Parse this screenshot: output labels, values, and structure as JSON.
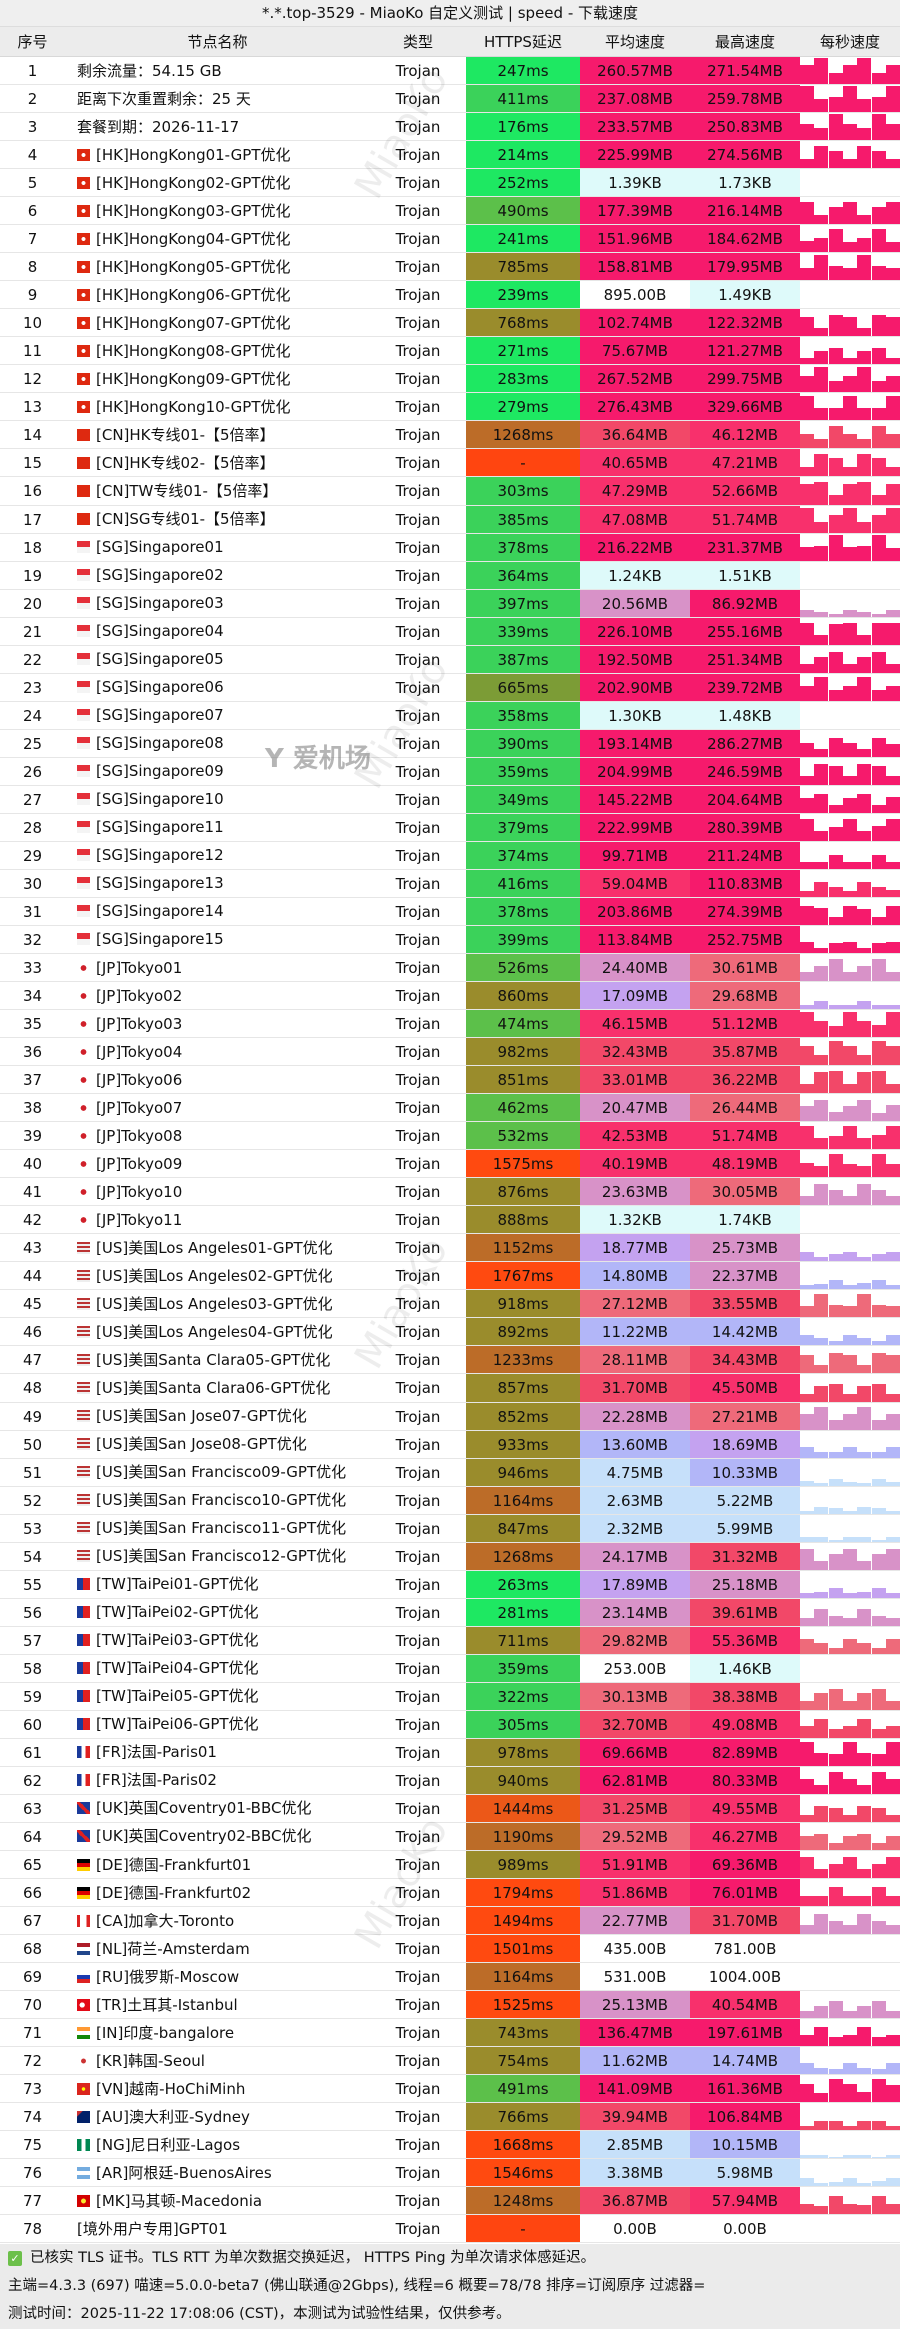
{
  "title": "*.*.top-3529 - MiaoKo 自定义测试 | speed - 下载速度",
  "columns": [
    "序号",
    "节点名称",
    "类型",
    "HTTPS延迟",
    "平均速度",
    "最高速度",
    "每秒速度"
  ],
  "rows": [
    {
      "no": "1",
      "flag": "",
      "name": "剩余流量：54.15 GB",
      "type": "Trojan",
      "latency": "247ms",
      "avg": "260.57MB",
      "max": "271.54MB"
    },
    {
      "no": "2",
      "flag": "",
      "name": "距离下次重置剩余：25 天",
      "type": "Trojan",
      "latency": "411ms",
      "avg": "237.08MB",
      "max": "259.78MB"
    },
    {
      "no": "3",
      "flag": "",
      "name": "套餐到期：2026-11-17",
      "type": "Trojan",
      "latency": "176ms",
      "avg": "233.57MB",
      "max": "250.83MB"
    },
    {
      "no": "4",
      "flag": "HK",
      "name": "[HK]HongKong01-GPT优化",
      "type": "Trojan",
      "latency": "214ms",
      "avg": "225.99MB",
      "max": "274.56MB"
    },
    {
      "no": "5",
      "flag": "HK",
      "name": "[HK]HongKong02-GPT优化",
      "type": "Trojan",
      "latency": "252ms",
      "avg": "1.39KB",
      "max": "1.73KB"
    },
    {
      "no": "6",
      "flag": "HK",
      "name": "[HK]HongKong03-GPT优化",
      "type": "Trojan",
      "latency": "490ms",
      "avg": "177.39MB",
      "max": "216.14MB"
    },
    {
      "no": "7",
      "flag": "HK",
      "name": "[HK]HongKong04-GPT优化",
      "type": "Trojan",
      "latency": "241ms",
      "avg": "151.96MB",
      "max": "184.62MB"
    },
    {
      "no": "8",
      "flag": "HK",
      "name": "[HK]HongKong05-GPT优化",
      "type": "Trojan",
      "latency": "785ms",
      "avg": "158.81MB",
      "max": "179.95MB"
    },
    {
      "no": "9",
      "flag": "HK",
      "name": "[HK]HongKong06-GPT优化",
      "type": "Trojan",
      "latency": "239ms",
      "avg": "895.00B",
      "max": "1.49KB"
    },
    {
      "no": "10",
      "flag": "HK",
      "name": "[HK]HongKong07-GPT优化",
      "type": "Trojan",
      "latency": "768ms",
      "avg": "102.74MB",
      "max": "122.32MB"
    },
    {
      "no": "11",
      "flag": "HK",
      "name": "[HK]HongKong08-GPT优化",
      "type": "Trojan",
      "latency": "271ms",
      "avg": "75.67MB",
      "max": "121.27MB"
    },
    {
      "no": "12",
      "flag": "HK",
      "name": "[HK]HongKong09-GPT优化",
      "type": "Trojan",
      "latency": "283ms",
      "avg": "267.52MB",
      "max": "299.75MB"
    },
    {
      "no": "13",
      "flag": "HK",
      "name": "[HK]HongKong10-GPT优化",
      "type": "Trojan",
      "latency": "279ms",
      "avg": "276.43MB",
      "max": "329.66MB"
    },
    {
      "no": "14",
      "flag": "CN",
      "name": "[CN]HK专线01-【5倍率】",
      "type": "Trojan",
      "latency": "1268ms",
      "avg": "36.64MB",
      "max": "46.12MB"
    },
    {
      "no": "15",
      "flag": "CN",
      "name": "[CN]HK专线02-【5倍率】",
      "type": "Trojan",
      "latency": "-",
      "avg": "40.65MB",
      "max": "47.21MB"
    },
    {
      "no": "16",
      "flag": "CN",
      "name": "[CN]TW专线01-【5倍率】",
      "type": "Trojan",
      "latency": "303ms",
      "avg": "47.29MB",
      "max": "52.66MB"
    },
    {
      "no": "17",
      "flag": "CN",
      "name": "[CN]SG专线01-【5倍率】",
      "type": "Trojan",
      "latency": "385ms",
      "avg": "47.08MB",
      "max": "51.74MB"
    },
    {
      "no": "18",
      "flag": "SG",
      "name": "[SG]Singapore01",
      "type": "Trojan",
      "latency": "378ms",
      "avg": "216.22MB",
      "max": "231.37MB"
    },
    {
      "no": "19",
      "flag": "SG",
      "name": "[SG]Singapore02",
      "type": "Trojan",
      "latency": "364ms",
      "avg": "1.24KB",
      "max": "1.51KB"
    },
    {
      "no": "20",
      "flag": "SG",
      "name": "[SG]Singapore03",
      "type": "Trojan",
      "latency": "397ms",
      "avg": "20.56MB",
      "max": "86.92MB"
    },
    {
      "no": "21",
      "flag": "SG",
      "name": "[SG]Singapore04",
      "type": "Trojan",
      "latency": "339ms",
      "avg": "226.10MB",
      "max": "255.16MB"
    },
    {
      "no": "22",
      "flag": "SG",
      "name": "[SG]Singapore05",
      "type": "Trojan",
      "latency": "387ms",
      "avg": "192.50MB",
      "max": "251.34MB"
    },
    {
      "no": "23",
      "flag": "SG",
      "name": "[SG]Singapore06",
      "type": "Trojan",
      "latency": "665ms",
      "avg": "202.90MB",
      "max": "239.72MB"
    },
    {
      "no": "24",
      "flag": "SG",
      "name": "[SG]Singapore07",
      "type": "Trojan",
      "latency": "358ms",
      "avg": "1.30KB",
      "max": "1.48KB"
    },
    {
      "no": "25",
      "flag": "SG",
      "name": "[SG]Singapore08",
      "type": "Trojan",
      "latency": "390ms",
      "avg": "193.14MB",
      "max": "286.27MB"
    },
    {
      "no": "26",
      "flag": "SG",
      "name": "[SG]Singapore09",
      "type": "Trojan",
      "latency": "359ms",
      "avg": "204.99MB",
      "max": "246.59MB"
    },
    {
      "no": "27",
      "flag": "SG",
      "name": "[SG]Singapore10",
      "type": "Trojan",
      "latency": "349ms",
      "avg": "145.22MB",
      "max": "204.64MB"
    },
    {
      "no": "28",
      "flag": "SG",
      "name": "[SG]Singapore11",
      "type": "Trojan",
      "latency": "379ms",
      "avg": "222.99MB",
      "max": "280.39MB"
    },
    {
      "no": "29",
      "flag": "SG",
      "name": "[SG]Singapore12",
      "type": "Trojan",
      "latency": "374ms",
      "avg": "99.71MB",
      "max": "211.24MB"
    },
    {
      "no": "30",
      "flag": "SG",
      "name": "[SG]Singapore13",
      "type": "Trojan",
      "latency": "416ms",
      "avg": "59.04MB",
      "max": "110.83MB"
    },
    {
      "no": "31",
      "flag": "SG",
      "name": "[SG]Singapore14",
      "type": "Trojan",
      "latency": "378ms",
      "avg": "203.86MB",
      "max": "274.39MB"
    },
    {
      "no": "32",
      "flag": "SG",
      "name": "[SG]Singapore15",
      "type": "Trojan",
      "latency": "399ms",
      "avg": "113.84MB",
      "max": "252.75MB"
    },
    {
      "no": "33",
      "flag": "JP",
      "name": "[JP]Tokyo01",
      "type": "Trojan",
      "latency": "526ms",
      "avg": "24.40MB",
      "max": "30.61MB"
    },
    {
      "no": "34",
      "flag": "JP",
      "name": "[JP]Tokyo02",
      "type": "Trojan",
      "latency": "860ms",
      "avg": "17.09MB",
      "max": "29.68MB"
    },
    {
      "no": "35",
      "flag": "JP",
      "name": "[JP]Tokyo03",
      "type": "Trojan",
      "latency": "474ms",
      "avg": "46.15MB",
      "max": "51.12MB"
    },
    {
      "no": "36",
      "flag": "JP",
      "name": "[JP]Tokyo04",
      "type": "Trojan",
      "latency": "982ms",
      "avg": "32.43MB",
      "max": "35.87MB"
    },
    {
      "no": "37",
      "flag": "JP",
      "name": "[JP]Tokyo06",
      "type": "Trojan",
      "latency": "851ms",
      "avg": "33.01MB",
      "max": "36.22MB"
    },
    {
      "no": "38",
      "flag": "JP",
      "name": "[JP]Tokyo07",
      "type": "Trojan",
      "latency": "462ms",
      "avg": "20.47MB",
      "max": "26.44MB"
    },
    {
      "no": "39",
      "flag": "JP",
      "name": "[JP]Tokyo08",
      "type": "Trojan",
      "latency": "532ms",
      "avg": "42.53MB",
      "max": "51.74MB"
    },
    {
      "no": "40",
      "flag": "JP",
      "name": "[JP]Tokyo09",
      "type": "Trojan",
      "latency": "1575ms",
      "avg": "40.19MB",
      "max": "48.19MB"
    },
    {
      "no": "41",
      "flag": "JP",
      "name": "[JP]Tokyo10",
      "type": "Trojan",
      "latency": "876ms",
      "avg": "23.63MB",
      "max": "30.05MB"
    },
    {
      "no": "42",
      "flag": "JP",
      "name": "[JP]Tokyo11",
      "type": "Trojan",
      "latency": "888ms",
      "avg": "1.32KB",
      "max": "1.74KB"
    },
    {
      "no": "43",
      "flag": "US",
      "name": "[US]美国Los Angeles01-GPT优化",
      "type": "Trojan",
      "latency": "1152ms",
      "avg": "18.77MB",
      "max": "25.73MB"
    },
    {
      "no": "44",
      "flag": "US",
      "name": "[US]美国Los Angeles02-GPT优化",
      "type": "Trojan",
      "latency": "1767ms",
      "avg": "14.80MB",
      "max": "22.37MB"
    },
    {
      "no": "45",
      "flag": "US",
      "name": "[US]美国Los Angeles03-GPT优化",
      "type": "Trojan",
      "latency": "918ms",
      "avg": "27.12MB",
      "max": "33.55MB"
    },
    {
      "no": "46",
      "flag": "US",
      "name": "[US]美国Los Angeles04-GPT优化",
      "type": "Trojan",
      "latency": "892ms",
      "avg": "11.22MB",
      "max": "14.42MB"
    },
    {
      "no": "47",
      "flag": "US",
      "name": "[US]美国Santa Clara05-GPT优化",
      "type": "Trojan",
      "latency": "1233ms",
      "avg": "28.11MB",
      "max": "34.43MB"
    },
    {
      "no": "48",
      "flag": "US",
      "name": "[US]美国Santa Clara06-GPT优化",
      "type": "Trojan",
      "latency": "857ms",
      "avg": "31.70MB",
      "max": "45.50MB"
    },
    {
      "no": "49",
      "flag": "US",
      "name": "[US]美国San Jose07-GPT优化",
      "type": "Trojan",
      "latency": "852ms",
      "avg": "22.28MB",
      "max": "27.21MB"
    },
    {
      "no": "50",
      "flag": "US",
      "name": "[US]美国San Jose08-GPT优化",
      "type": "Trojan",
      "latency": "933ms",
      "avg": "13.60MB",
      "max": "18.69MB"
    },
    {
      "no": "51",
      "flag": "US",
      "name": "[US]美国San Francisco09-GPT优化",
      "type": "Trojan",
      "latency": "946ms",
      "avg": "4.75MB",
      "max": "10.33MB"
    },
    {
      "no": "52",
      "flag": "US",
      "name": "[US]美国San Francisco10-GPT优化",
      "type": "Trojan",
      "latency": "1164ms",
      "avg": "2.63MB",
      "max": "5.22MB"
    },
    {
      "no": "53",
      "flag": "US",
      "name": "[US]美国San Francisco11-GPT优化",
      "type": "Trojan",
      "latency": "847ms",
      "avg": "2.32MB",
      "max": "5.99MB"
    },
    {
      "no": "54",
      "flag": "US",
      "name": "[US]美国San Francisco12-GPT优化",
      "type": "Trojan",
      "latency": "1268ms",
      "avg": "24.17MB",
      "max": "31.32MB"
    },
    {
      "no": "55",
      "flag": "TW",
      "name": "[TW]TaiPei01-GPT优化",
      "type": "Trojan",
      "latency": "263ms",
      "avg": "17.89MB",
      "max": "25.18MB"
    },
    {
      "no": "56",
      "flag": "TW",
      "name": "[TW]TaiPei02-GPT优化",
      "type": "Trojan",
      "latency": "281ms",
      "avg": "23.14MB",
      "max": "39.61MB"
    },
    {
      "no": "57",
      "flag": "TW",
      "name": "[TW]TaiPei03-GPT优化",
      "type": "Trojan",
      "latency": "711ms",
      "avg": "29.82MB",
      "max": "55.36MB"
    },
    {
      "no": "58",
      "flag": "TW",
      "name": "[TW]TaiPei04-GPT优化",
      "type": "Trojan",
      "latency": "359ms",
      "avg": "253.00B",
      "max": "1.46KB"
    },
    {
      "no": "59",
      "flag": "TW",
      "name": "[TW]TaiPei05-GPT优化",
      "type": "Trojan",
      "latency": "322ms",
      "avg": "30.13MB",
      "max": "38.38MB"
    },
    {
      "no": "60",
      "flag": "TW",
      "name": "[TW]TaiPei06-GPT优化",
      "type": "Trojan",
      "latency": "305ms",
      "avg": "32.70MB",
      "max": "49.08MB"
    },
    {
      "no": "61",
      "flag": "FR",
      "name": "[FR]法国-Paris01",
      "type": "Trojan",
      "latency": "978ms",
      "avg": "69.66MB",
      "max": "82.89MB"
    },
    {
      "no": "62",
      "flag": "FR",
      "name": "[FR]法国-Paris02",
      "type": "Trojan",
      "latency": "940ms",
      "avg": "62.81MB",
      "max": "80.33MB"
    },
    {
      "no": "63",
      "flag": "UK",
      "name": "[UK]英国Coventry01-BBC优化",
      "type": "Trojan",
      "latency": "1444ms",
      "avg": "31.25MB",
      "max": "49.55MB"
    },
    {
      "no": "64",
      "flag": "UK",
      "name": "[UK]英国Coventry02-BBC优化",
      "type": "Trojan",
      "latency": "1190ms",
      "avg": "29.52MB",
      "max": "46.27MB"
    },
    {
      "no": "65",
      "flag": "DE",
      "name": "[DE]德国-Frankfurt01",
      "type": "Trojan",
      "latency": "989ms",
      "avg": "51.91MB",
      "max": "69.36MB"
    },
    {
      "no": "66",
      "flag": "DE",
      "name": "[DE]德国-Frankfurt02",
      "type": "Trojan",
      "latency": "1794ms",
      "avg": "51.86MB",
      "max": "76.01MB"
    },
    {
      "no": "67",
      "flag": "CA",
      "name": "[CA]加拿大-Toronto",
      "type": "Trojan",
      "latency": "1494ms",
      "avg": "22.77MB",
      "max": "31.70MB"
    },
    {
      "no": "68",
      "flag": "NL",
      "name": "[NL]荷兰-Amsterdam",
      "type": "Trojan",
      "latency": "1501ms",
      "avg": "435.00B",
      "max": "781.00B"
    },
    {
      "no": "69",
      "flag": "RU",
      "name": "[RU]俄罗斯-Moscow",
      "type": "Trojan",
      "latency": "1164ms",
      "avg": "531.00B",
      "max": "1004.00B"
    },
    {
      "no": "70",
      "flag": "TR",
      "name": "[TR]土耳其-Istanbul",
      "type": "Trojan",
      "latency": "1525ms",
      "avg": "25.13MB",
      "max": "40.54MB"
    },
    {
      "no": "71",
      "flag": "IN",
      "name": "[IN]印度-bangalore",
      "type": "Trojan",
      "latency": "743ms",
      "avg": "136.47MB",
      "max": "197.61MB"
    },
    {
      "no": "72",
      "flag": "KR",
      "name": "[KR]韩国-Seoul",
      "type": "Trojan",
      "latency": "754ms",
      "avg": "11.62MB",
      "max": "14.74MB"
    },
    {
      "no": "73",
      "flag": "VN",
      "name": "[VN]越南-HoChiMinh",
      "type": "Trojan",
      "latency": "491ms",
      "avg": "141.09MB",
      "max": "161.36MB"
    },
    {
      "no": "74",
      "flag": "AU",
      "name": "[AU]澳大利亚-Sydney",
      "type": "Trojan",
      "latency": "766ms",
      "avg": "39.94MB",
      "max": "106.84MB"
    },
    {
      "no": "75",
      "flag": "NG",
      "name": "[NG]尼日利亚-Lagos",
      "type": "Trojan",
      "latency": "1668ms",
      "avg": "2.85MB",
      "max": "10.15MB"
    },
    {
      "no": "76",
      "flag": "AR",
      "name": "[AR]阿根廷-BuenosAires",
      "type": "Trojan",
      "latency": "1546ms",
      "avg": "3.38MB",
      "max": "5.98MB"
    },
    {
      "no": "77",
      "flag": "MK",
      "name": "[MK]马其顿-Macedonia",
      "type": "Trojan",
      "latency": "1248ms",
      "avg": "36.87MB",
      "max": "57.94MB"
    },
    {
      "no": "78",
      "flag": "",
      "name": "[境外用户专用]GPT01",
      "type": "Trojan",
      "latency": "-",
      "avg": "0.00B",
      "max": "0.00B"
    }
  ],
  "footer": {
    "check_icon": "check-icon",
    "line1": "已核实 TLS 证书。TLS RTT 为单次数据交换延迟， HTTPS Ping 为单次请求体感延迟。",
    "line2": "主端=4.3.3 (697) 喵速=5.0.0-beta7 (佛山联通@2Gbps), 线程=6 概要=78/78 排序=订阅原序 过滤器=",
    "line3": "测试时间：2025-11-22 17:08:06 (CST)，本测试为试验性结果，仅供参考。"
  },
  "watermarks": [
    "MiaoKo",
    "爱机场"
  ]
}
